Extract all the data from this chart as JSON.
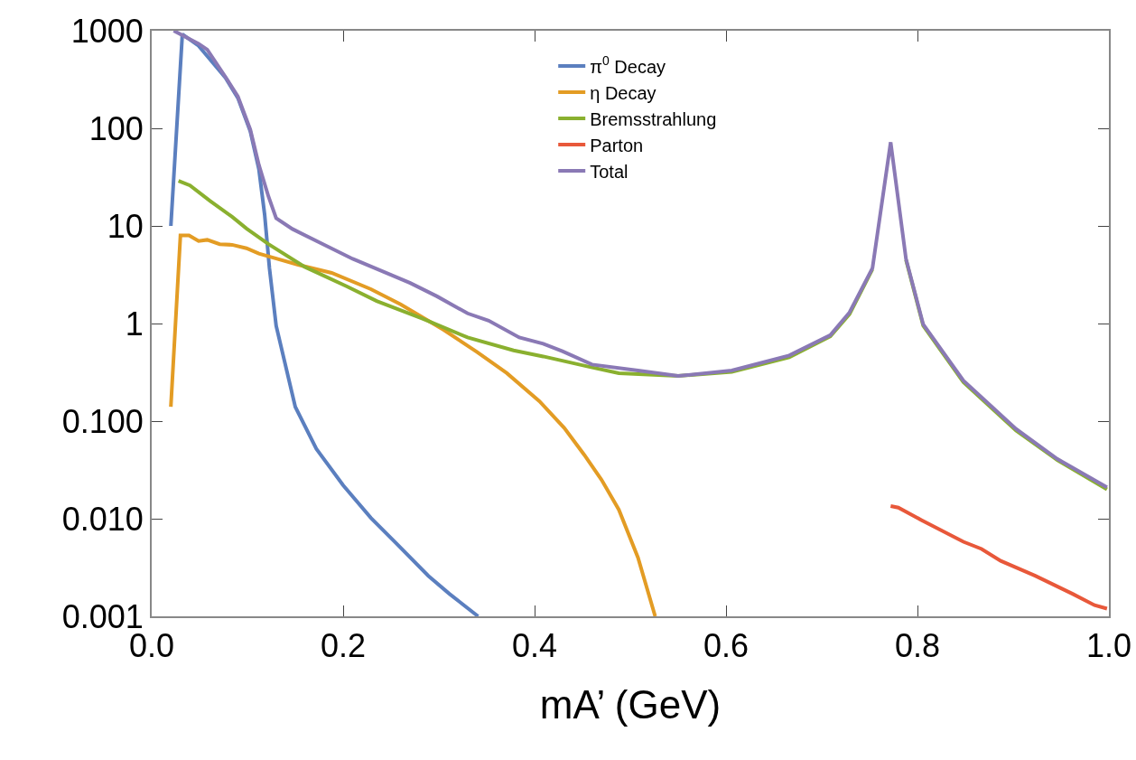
{
  "chart_data": {
    "type": "line",
    "xlabel": "mA’ (GeV)",
    "log": "y",
    "grid": false,
    "legend": "top",
    "line_style": "solid",
    "marker": "none",
    "xlim": [
      0,
      1
    ],
    "xticks": [
      {
        "value": 0,
        "label": "0.0"
      },
      {
        "value": 0.2,
        "label": "0.2"
      },
      {
        "value": 0.4,
        "label": "0.4"
      },
      {
        "value": 0.6,
        "label": "0.6"
      },
      {
        "value": 0.8,
        "label": "0.8"
      },
      {
        "value": 1,
        "label": "1.0"
      }
    ],
    "ylim": [
      0.001,
      1000
    ],
    "yticks": [
      {
        "value": 0.001,
        "label": "0.001"
      },
      {
        "value": 0.01,
        "label": "0.010"
      },
      {
        "value": 0.1,
        "label": "0.100"
      },
      1,
      10,
      100,
      1000
    ],
    "series": [
      {
        "name": "π$^{0}$ Decay",
        "color": "#5b7fbf",
        "x": [
          0.02,
          0.032,
          0.049,
          0.077,
          0.09,
          0.103,
          0.112,
          0.118,
          0.123,
          0.13,
          0.15,
          0.172,
          0.2,
          0.229,
          0.254,
          0.289,
          0.311,
          0.341
        ],
        "values": [
          10,
          920,
          700,
          330,
          205,
          93,
          38,
          13,
          3.7,
          0.95,
          0.14,
          0.052,
          0.022,
          0.0102,
          0.0058,
          0.0026,
          0.0017,
          0.001
        ]
      },
      {
        "name": "η Decay",
        "color": "#e39c24",
        "x": [
          0.02,
          0.03,
          0.039,
          0.049,
          0.058,
          0.071,
          0.084,
          0.099,
          0.112,
          0.131,
          0.153,
          0.188,
          0.229,
          0.26,
          0.305,
          0.34,
          0.371,
          0.405,
          0.431,
          0.452,
          0.47,
          0.488,
          0.508,
          0.526
        ],
        "values": [
          0.14,
          8,
          8,
          7,
          7.2,
          6.5,
          6.4,
          5.9,
          5.2,
          4.6,
          4,
          3.3,
          2.25,
          1.57,
          0.86,
          0.51,
          0.31,
          0.16,
          0.085,
          0.045,
          0.025,
          0.0124,
          0.004,
          0.001
        ]
      },
      {
        "name": "Bremsstrahlung",
        "color": "#8ab02f",
        "x": [
          0.028,
          0.04,
          0.061,
          0.084,
          0.099,
          0.122,
          0.16,
          0.204,
          0.235,
          0.283,
          0.33,
          0.378,
          0.409,
          0.457,
          0.488,
          0.55,
          0.606,
          0.666,
          0.709,
          0.729,
          0.753,
          0.772,
          0.788,
          0.806,
          0.848,
          0.903,
          0.946,
          0.998
        ],
        "values": [
          29,
          26,
          18,
          12.4,
          9.4,
          6.5,
          3.8,
          2.4,
          1.7,
          1.12,
          0.72,
          0.53,
          0.46,
          0.36,
          0.31,
          0.29,
          0.32,
          0.45,
          0.74,
          1.25,
          3.6,
          null,
          4.5,
          0.95,
          0.25,
          0.08,
          0.04,
          0.02
        ]
      },
      {
        "name": "Parton",
        "color": "#e8583a",
        "x": [
          0.772,
          0.78,
          0.804,
          0.848,
          0.867,
          0.887,
          0.923,
          0.962,
          0.985,
          0.998
        ],
        "values": [
          0.0135,
          0.013,
          0.0097,
          0.0058,
          0.0049,
          0.0037,
          0.0026,
          0.0017,
          0.0013,
          0.0012
        ]
      },
      {
        "name": "Total",
        "color": "#8a79b5",
        "x": [
          0.023,
          0.049,
          0.058,
          0.077,
          0.09,
          0.103,
          0.112,
          0.122,
          0.13,
          0.147,
          0.179,
          0.21,
          0.242,
          0.27,
          0.298,
          0.33,
          0.352,
          0.384,
          0.409,
          0.429,
          0.46,
          0.508,
          0.55,
          0.606,
          0.666,
          0.709,
          0.729,
          0.753,
          0.772,
          0.788,
          0.806,
          0.848,
          0.903,
          0.946,
          0.998
        ],
        "values": [
          1000,
          736,
          640,
          337,
          212,
          97,
          42,
          20,
          12,
          9.3,
          6.5,
          4.6,
          3.4,
          2.6,
          1.9,
          1.27,
          1.07,
          0.72,
          0.62,
          0.52,
          0.38,
          0.33,
          0.29,
          0.33,
          0.47,
          0.76,
          1.3,
          3.7,
          72,
          4.6,
          0.98,
          0.26,
          0.083,
          0.041,
          0.021
        ]
      }
    ]
  }
}
